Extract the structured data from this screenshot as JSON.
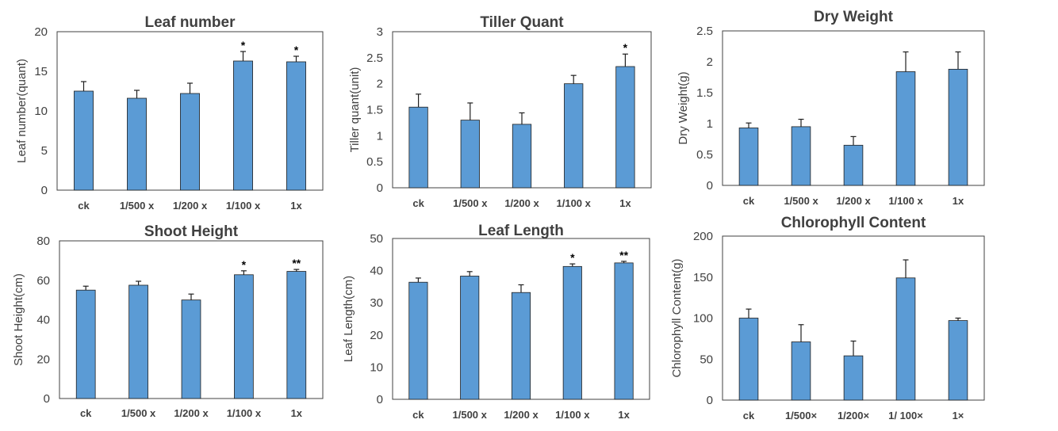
{
  "colors": {
    "bar": "#5b9bd5",
    "bar_stroke": "#1f1f1f",
    "frame": "#404040",
    "text": "#404040",
    "title": "#404040"
  },
  "chart_data": [
    {
      "type": "bar",
      "title": "Leaf number",
      "ylabel": "Leaf number(quant)",
      "xlabel": "",
      "categories": [
        "ck",
        "1/500 x",
        "1/200 x",
        "1/100 x",
        "1x"
      ],
      "values": [
        12.5,
        11.6,
        12.2,
        16.3,
        16.2
      ],
      "errors": [
        1.2,
        1.0,
        1.3,
        1.2,
        0.7
      ],
      "significance": [
        "",
        "",
        "",
        "*",
        "*"
      ],
      "ylim": [
        0,
        20
      ],
      "yticks": [
        0,
        5,
        10,
        15,
        20
      ],
      "ytick_labels": [
        "0",
        "5",
        "10",
        "15",
        "20"
      ],
      "grid": false
    },
    {
      "type": "bar",
      "title": "Tiller Quant",
      "ylabel": "Tiller quant(unit)",
      "xlabel": "",
      "categories": [
        "ck",
        "1/500 x",
        "1/200 x",
        "1/100 x",
        "1x"
      ],
      "values": [
        1.55,
        1.3,
        1.22,
        2.0,
        2.33
      ],
      "errors": [
        0.25,
        0.33,
        0.22,
        0.16,
        0.24
      ],
      "significance": [
        "",
        "",
        "",
        "",
        "*"
      ],
      "ylim": [
        0,
        3
      ],
      "yticks": [
        0,
        0.5,
        1,
        1.5,
        2,
        2.5,
        3
      ],
      "ytick_labels": [
        "0",
        "0.5",
        "1",
        "1.5",
        "2",
        "2.5",
        "3"
      ],
      "grid": false
    },
    {
      "type": "bar",
      "title": "Dry Weight",
      "ylabel": "Dry Weight(g)",
      "xlabel": "",
      "categories": [
        "ck",
        "1/500 x",
        "1/200 x",
        "1/100 x",
        "1x"
      ],
      "values": [
        0.93,
        0.95,
        0.65,
        1.84,
        1.88
      ],
      "errors": [
        0.08,
        0.12,
        0.14,
        0.32,
        0.28
      ],
      "significance": [
        "",
        "",
        "",
        "",
        ""
      ],
      "ylim": [
        0,
        2.5
      ],
      "yticks": [
        0,
        0.5,
        1,
        1.5,
        2,
        2.5
      ],
      "ytick_labels": [
        "0",
        "0.5",
        "1",
        "1.5",
        "2",
        "2.5"
      ],
      "grid": false
    },
    {
      "type": "bar",
      "title": "Shoot Height",
      "ylabel": "Shoot Height(cm)",
      "xlabel": "",
      "categories": [
        "ck",
        "1/500 x",
        "1/200 x",
        "1/100 x",
        "1x"
      ],
      "values": [
        55,
        57.5,
        50,
        62.8,
        64.5
      ],
      "errors": [
        2.0,
        2.0,
        3.0,
        2.0,
        1.0
      ],
      "significance": [
        "",
        "",
        "",
        "*",
        "**"
      ],
      "ylim": [
        0,
        80
      ],
      "yticks": [
        0,
        20,
        40,
        60,
        80
      ],
      "ytick_labels": [
        "0",
        "20",
        "40",
        "60",
        "80"
      ],
      "grid": false
    },
    {
      "type": "bar",
      "title": "Leaf Length",
      "ylabel": "Leaf Length(cm)",
      "xlabel": "",
      "categories": [
        "ck",
        "1/500 x",
        "1/200 x",
        "1/100 x",
        "1x"
      ],
      "values": [
        36.4,
        38.3,
        33.2,
        41.3,
        42.4
      ],
      "errors": [
        1.3,
        1.4,
        2.4,
        0.8,
        0.5
      ],
      "significance": [
        "",
        "",
        "",
        "*",
        "**"
      ],
      "ylim": [
        0,
        50
      ],
      "yticks": [
        0,
        10,
        20,
        30,
        40,
        50
      ],
      "ytick_labels": [
        "0",
        "10",
        "20",
        "30",
        "40",
        "50"
      ],
      "grid": false
    },
    {
      "type": "bar",
      "title": "Chlorophyll Content",
      "ylabel": "Chlorophyll Content(g)",
      "xlabel": "",
      "categories": [
        "ck",
        "1/500×",
        "1/200×",
        "1/ 100×",
        "1×"
      ],
      "values": [
        100,
        71,
        54,
        149,
        97
      ],
      "errors": [
        11,
        21,
        18,
        22,
        3
      ],
      "significance": [
        "",
        "",
        "",
        "",
        ""
      ],
      "ylim": [
        0,
        200
      ],
      "yticks": [
        0,
        50,
        100,
        150,
        200
      ],
      "ytick_labels": [
        "0",
        "50",
        "100",
        "150",
        "200"
      ],
      "grid": false
    }
  ]
}
